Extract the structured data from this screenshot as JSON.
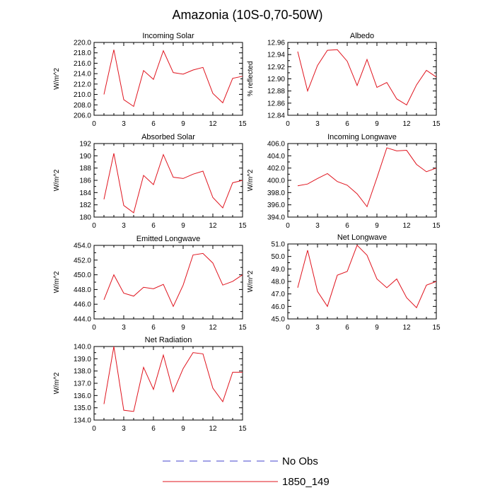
{
  "figure": {
    "title": "Amazonia (10S-0,70-50W)"
  },
  "legend": {
    "entries": [
      {
        "label": "No Obs",
        "color": "#4444cc",
        "dashed": true
      },
      {
        "label": "1850_149",
        "color": "#e0141e",
        "dashed": false
      }
    ]
  },
  "chart_data": [
    {
      "type": "line",
      "title": "Incoming Solar",
      "ylabel": "W/m^2",
      "xlim": [
        0,
        15
      ],
      "ylim": [
        206,
        220
      ],
      "xticks": [
        "0",
        "3",
        "6",
        "9",
        "12",
        "15"
      ],
      "yticks": [
        "206.0",
        "208.0",
        "210.0",
        "212.0",
        "214.0",
        "216.0",
        "218.0",
        "220.0"
      ],
      "x": [
        1,
        2,
        3,
        4,
        5,
        6,
        7,
        8,
        9,
        10,
        11,
        12,
        13,
        14,
        15
      ],
      "series": [
        {
          "name": "1850_149",
          "color": "#e0141e",
          "values": [
            210.0,
            218.6,
            209.0,
            207.7,
            214.6,
            212.9,
            218.4,
            214.2,
            213.9,
            214.7,
            215.2,
            210.2,
            208.4,
            213.1,
            213.5
          ]
        }
      ]
    },
    {
      "type": "line",
      "title": "Albedo",
      "ylabel": "% reflected",
      "xlim": [
        0,
        15
      ],
      "ylim": [
        12.84,
        12.96
      ],
      "xticks": [
        "0",
        "3",
        "6",
        "9",
        "12",
        "15"
      ],
      "yticks": [
        "12.84",
        "12.86",
        "12.88",
        "12.90",
        "12.92",
        "12.94",
        "12.96"
      ],
      "x": [
        1,
        2,
        3,
        4,
        5,
        6,
        7,
        8,
        9,
        10,
        11,
        12,
        13,
        14,
        15
      ],
      "series": [
        {
          "name": "1850_149",
          "color": "#e0141e",
          "values": [
            12.945,
            12.88,
            12.922,
            12.947,
            12.948,
            12.929,
            12.889,
            12.932,
            12.886,
            12.894,
            12.867,
            12.857,
            12.89,
            12.914,
            12.903
          ]
        }
      ]
    },
    {
      "type": "line",
      "title": "Absorbed Solar",
      "ylabel": "W/m^2",
      "xlim": [
        0,
        15
      ],
      "ylim": [
        180,
        192
      ],
      "xticks": [
        "0",
        "3",
        "6",
        "9",
        "12",
        "15"
      ],
      "yticks": [
        "180",
        "182",
        "184",
        "186",
        "188",
        "190",
        "192"
      ],
      "x": [
        1,
        2,
        3,
        4,
        5,
        6,
        7,
        8,
        9,
        10,
        11,
        12,
        13,
        14,
        15
      ],
      "series": [
        {
          "name": "1850_149",
          "color": "#e0141e",
          "values": [
            182.9,
            190.4,
            181.9,
            180.7,
            186.8,
            185.3,
            190.2,
            186.5,
            186.3,
            187.0,
            187.5,
            183.2,
            181.5,
            185.6,
            186.0
          ]
        }
      ]
    },
    {
      "type": "line",
      "title": "Incoming Longwave",
      "ylabel": "W/m^2",
      "xlim": [
        0,
        15
      ],
      "ylim": [
        394,
        406
      ],
      "xticks": [
        "0",
        "3",
        "6",
        "9",
        "12",
        "15"
      ],
      "yticks": [
        "394.0",
        "396.0",
        "398.0",
        "400.0",
        "402.0",
        "404.0",
        "406.0"
      ],
      "x": [
        1,
        2,
        3,
        4,
        5,
        6,
        7,
        8,
        9,
        10,
        11,
        12,
        13,
        14,
        15
      ],
      "series": [
        {
          "name": "1850_149",
          "color": "#e0141e",
          "values": [
            399.1,
            399.4,
            400.3,
            401.1,
            399.8,
            399.2,
            397.8,
            395.7,
            400.4,
            405.3,
            404.8,
            404.9,
            402.6,
            401.4,
            402.0
          ]
        }
      ]
    },
    {
      "type": "line",
      "title": "Emitted Longwave",
      "ylabel": "W/m^2",
      "xlim": [
        0,
        15
      ],
      "ylim": [
        444,
        454
      ],
      "xticks": [
        "0",
        "3",
        "6",
        "9",
        "12",
        "15"
      ],
      "yticks": [
        "444.0",
        "446.0",
        "448.0",
        "450.0",
        "452.0",
        "454.0"
      ],
      "x": [
        1,
        2,
        3,
        4,
        5,
        6,
        7,
        8,
        9,
        10,
        11,
        12,
        13,
        14,
        15
      ],
      "series": [
        {
          "name": "1850_149",
          "color": "#e0141e",
          "values": [
            446.6,
            450.0,
            447.5,
            447.1,
            448.3,
            448.1,
            448.7,
            445.7,
            448.6,
            452.7,
            452.9,
            451.6,
            448.6,
            449.1,
            450.0
          ]
        }
      ]
    },
    {
      "type": "line",
      "title": "Net Longwave",
      "ylabel": "W/m^2",
      "xlim": [
        0,
        15
      ],
      "ylim": [
        45,
        51
      ],
      "xticks": [
        "0",
        "3",
        "6",
        "9",
        "12",
        "15"
      ],
      "yticks": [
        "45.0",
        "46.0",
        "47.0",
        "48.0",
        "49.0",
        "50.0",
        "51.0"
      ],
      "x": [
        1,
        2,
        3,
        4,
        5,
        6,
        7,
        8,
        9,
        10,
        11,
        12,
        13,
        14,
        15
      ],
      "series": [
        {
          "name": "1850_149",
          "color": "#e0141e",
          "values": [
            47.5,
            50.5,
            47.2,
            46.0,
            48.5,
            48.8,
            50.9,
            50.1,
            48.2,
            47.5,
            48.2,
            46.7,
            45.9,
            47.7,
            48.0
          ]
        }
      ]
    },
    {
      "type": "line",
      "title": "Net Radiation",
      "ylabel": "W/m^2",
      "xlim": [
        0,
        15
      ],
      "ylim": [
        134,
        140
      ],
      "xticks": [
        "0",
        "3",
        "6",
        "9",
        "12",
        "15"
      ],
      "yticks": [
        "134.0",
        "135.0",
        "136.0",
        "137.0",
        "138.0",
        "139.0",
        "140.0"
      ],
      "x": [
        1,
        2,
        3,
        4,
        5,
        6,
        7,
        8,
        9,
        10,
        11,
        12,
        13,
        14,
        15
      ],
      "series": [
        {
          "name": "1850_149",
          "color": "#e0141e",
          "values": [
            135.3,
            140.0,
            134.8,
            134.7,
            138.3,
            136.5,
            139.3,
            136.3,
            138.2,
            139.5,
            139.4,
            136.6,
            135.5,
            137.9,
            137.9
          ]
        }
      ]
    }
  ]
}
